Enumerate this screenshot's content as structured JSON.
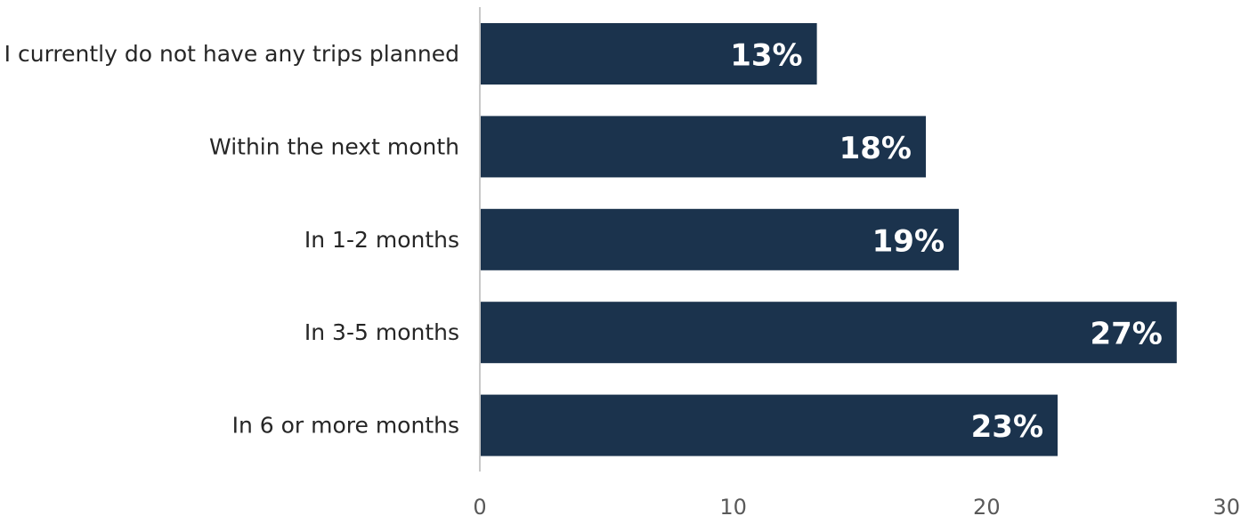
{
  "chart_data": {
    "type": "bar",
    "orientation": "horizontal",
    "categories": [
      "I currently do not have any trips planned",
      "Within the next month",
      "In 1-2 months",
      "In 3-5 months",
      "In 6 or more months"
    ],
    "values": [
      13.3,
      17.6,
      18.9,
      27.5,
      22.8
    ],
    "data_labels": [
      "13%",
      "18%",
      "19%",
      "27%",
      "23%"
    ],
    "xlim": [
      0,
      30
    ],
    "xticks": [
      0,
      10,
      20,
      30
    ],
    "title": "",
    "xlabel": "",
    "ylabel": "",
    "grid": false,
    "legend": "none",
    "colors": {
      "bar": "#1b334d",
      "axis": "#c8c8c8",
      "data_label": "#ffffff",
      "category_label": "#262626",
      "tick_label": "#595959"
    }
  }
}
